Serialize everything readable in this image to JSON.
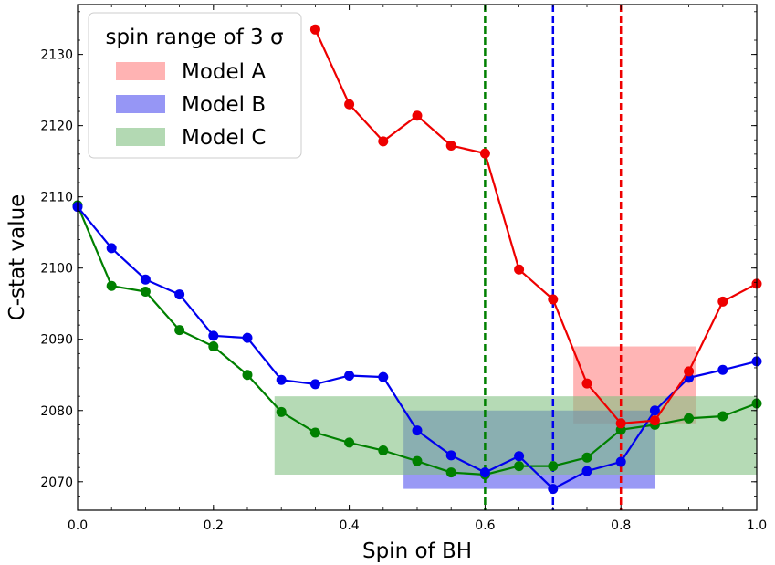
{
  "chart_data": {
    "type": "line",
    "xlabel": "Spin of BH",
    "ylabel": "C-stat value",
    "xlim": [
      0.0,
      1.0
    ],
    "ylim": [
      2066,
      2137
    ],
    "xticks": [
      "0.0",
      "0.2",
      "0.4",
      "0.6",
      "0.8",
      "1.0"
    ],
    "yticks": [
      "2070",
      "2080",
      "2090",
      "2100",
      "2110",
      "2120",
      "2130"
    ],
    "grid": false,
    "legend": {
      "title": "spin range of 3 σ",
      "position": "top-left"
    },
    "series": [
      {
        "name": "Model A",
        "color": "#ee0000",
        "x": [
          0.35,
          0.4,
          0.45,
          0.5,
          0.55,
          0.6,
          0.65,
          0.7,
          0.75,
          0.8,
          0.85,
          0.9,
          0.95,
          1.0
        ],
        "y": [
          2133.5,
          2123.0,
          2117.8,
          2121.4,
          2117.2,
          2116.1,
          2099.8,
          2095.6,
          2083.8,
          2078.2,
          2078.6,
          2085.5,
          2095.3,
          2097.8
        ],
        "best_spin": 0.8,
        "spin_range": [
          0.73,
          0.91
        ],
        "cstat_range": [
          2078.2,
          2089.0
        ],
        "range_color": "#ff8080"
      },
      {
        "name": "Model B",
        "color": "#0000ee",
        "x": [
          0.0,
          0.05,
          0.1,
          0.15,
          0.2,
          0.25,
          0.3,
          0.35,
          0.4,
          0.45,
          0.5,
          0.55,
          0.6,
          0.65,
          0.7,
          0.75,
          0.8,
          0.85,
          0.9,
          0.95,
          1.0
        ],
        "y": [
          2108.6,
          2102.8,
          2098.4,
          2096.3,
          2090.5,
          2090.2,
          2084.3,
          2083.7,
          2084.9,
          2084.7,
          2077.2,
          2073.7,
          2071.3,
          2073.6,
          2069.0,
          2071.5,
          2072.8,
          2080.0,
          2084.6,
          2085.7,
          2086.9
        ],
        "best_spin": 0.7,
        "spin_range": [
          0.48,
          0.85
        ],
        "cstat_range": [
          2069.0,
          2080.0
        ],
        "range_color": "#5050ee"
      },
      {
        "name": "Model C",
        "color": "#008000",
        "x": [
          0.0,
          0.05,
          0.1,
          0.15,
          0.2,
          0.25,
          0.3,
          0.35,
          0.4,
          0.45,
          0.5,
          0.55,
          0.6,
          0.65,
          0.7,
          0.75,
          0.8,
          0.85,
          0.9,
          0.95,
          1.0
        ],
        "y": [
          2108.8,
          2097.5,
          2096.7,
          2091.3,
          2089.0,
          2085.0,
          2079.8,
          2076.9,
          2075.5,
          2074.4,
          2072.9,
          2071.3,
          2071.0,
          2072.2,
          2072.2,
          2073.4,
          2077.3,
          2078.0,
          2078.9,
          2079.2,
          2081.0
        ],
        "best_spin": 0.6,
        "spin_range": [
          0.29,
          1.0
        ],
        "cstat_range": [
          2071.0,
          2082.0
        ],
        "range_color": "#80c080"
      }
    ]
  }
}
